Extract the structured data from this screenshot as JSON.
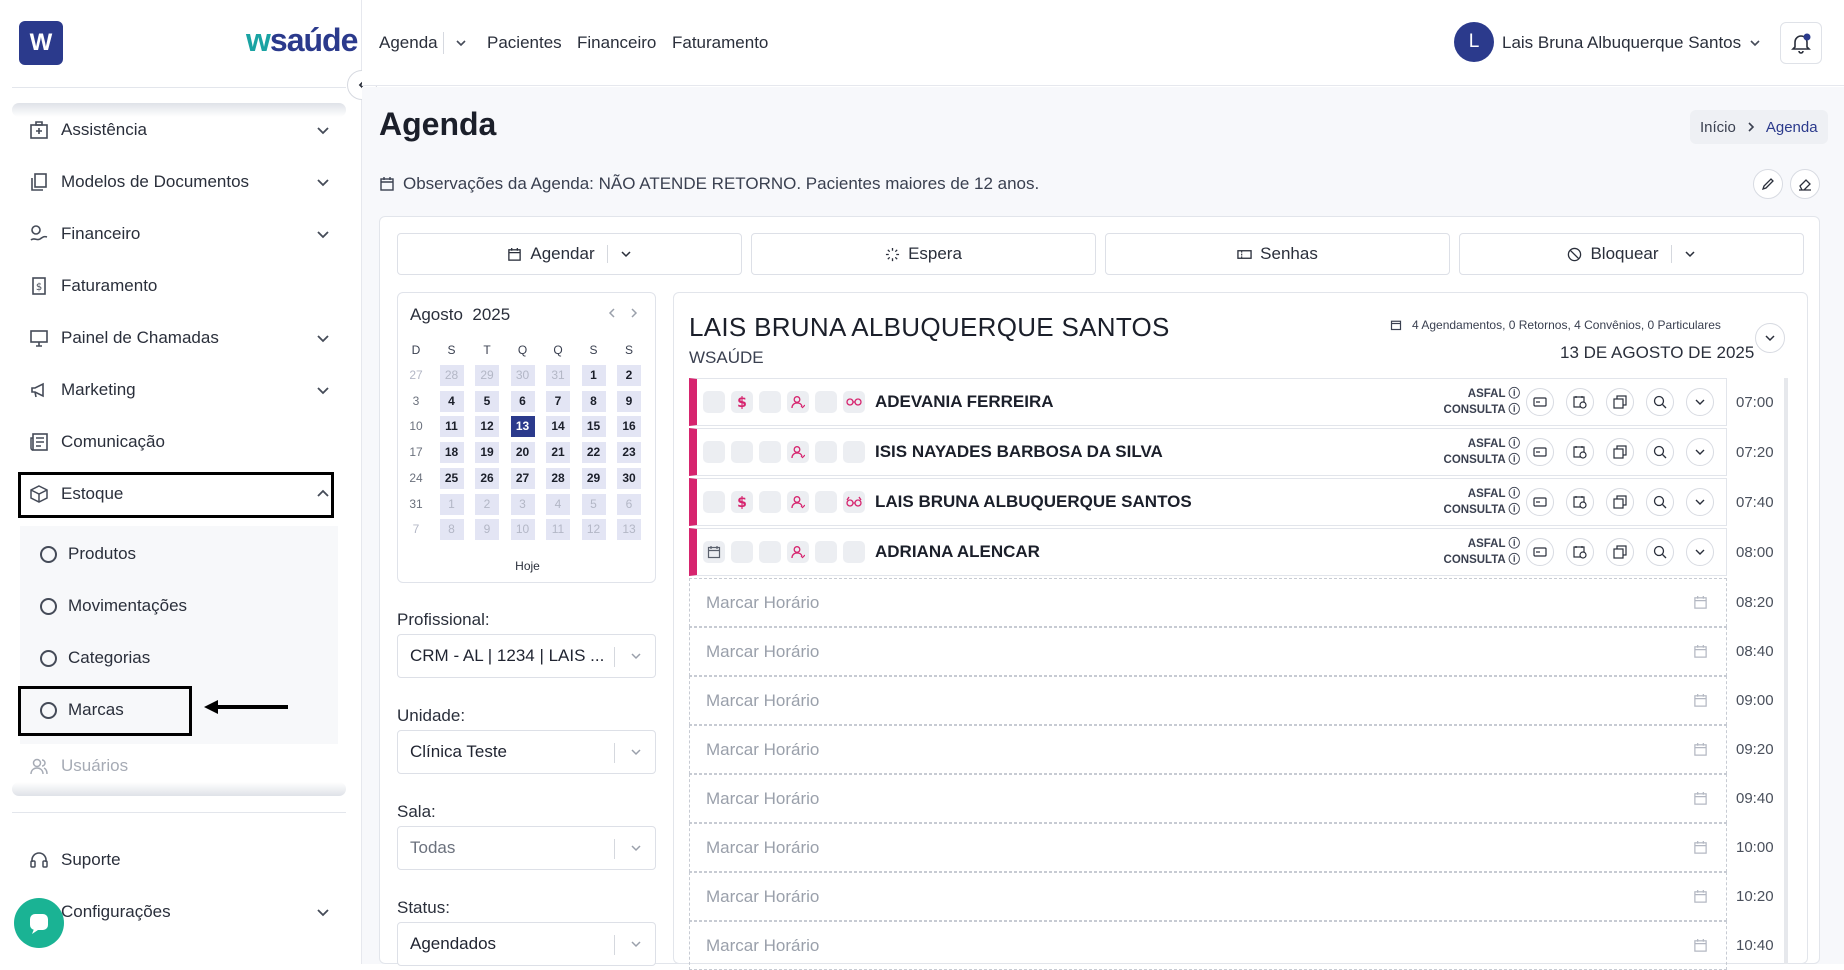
{
  "brand": {
    "logo_letter": "W",
    "name_prefix": "w",
    "name_suffix": "saúde"
  },
  "sidebar": {
    "items": [
      {
        "label": "Assistência",
        "icon": "hospital-icon"
      },
      {
        "label": "Modelos de Documentos",
        "icon": "documents-icon"
      },
      {
        "label": "Financeiro",
        "icon": "finance-icon"
      },
      {
        "label": "Faturamento",
        "icon": "invoice-icon"
      },
      {
        "label": "Painel de Chamadas",
        "icon": "monitor-icon"
      },
      {
        "label": "Marketing",
        "icon": "megaphone-icon"
      },
      {
        "label": "Comunicação",
        "icon": "newspaper-icon"
      },
      {
        "label": "Estoque",
        "icon": "box-icon"
      }
    ],
    "sub_items": [
      "Produtos",
      "Movimentações",
      "Categorias",
      "Marcas"
    ],
    "users": "Usuários",
    "support": "Suporte",
    "settings": "Configurações"
  },
  "nav": {
    "agenda": "Agenda",
    "pacientes": "Pacientes",
    "financeiro": "Financeiro",
    "faturamento": "Faturamento"
  },
  "user": {
    "initial": "L",
    "name": "Lais Bruna Albuquerque Santos"
  },
  "page": {
    "title": "Agenda",
    "breadcrumb_home": "Início",
    "breadcrumb_current": "Agenda",
    "observation": "Observações da Agenda: NÃO ATENDE RETORNO. Pacientes maiores de 12 anos."
  },
  "toolbar": {
    "agendar": "Agendar",
    "espera": "Espera",
    "senhas": "Senhas",
    "bloquear": "Bloquear"
  },
  "calendar": {
    "month": "Agosto",
    "year": "2025",
    "today": "Hoje",
    "weekdays": [
      "D",
      "S",
      "T",
      "Q",
      "Q",
      "S",
      "S"
    ],
    "weeks": [
      [
        "27",
        "28",
        "29",
        "30",
        "31",
        "1",
        "2"
      ],
      [
        "3",
        "4",
        "5",
        "6",
        "7",
        "8",
        "9"
      ],
      [
        "10",
        "11",
        "12",
        "13",
        "14",
        "15",
        "16"
      ],
      [
        "17",
        "18",
        "19",
        "20",
        "21",
        "22",
        "23"
      ],
      [
        "24",
        "25",
        "26",
        "27",
        "28",
        "29",
        "30"
      ],
      [
        "31",
        "1",
        "2",
        "3",
        "4",
        "5",
        "6"
      ],
      [
        "7",
        "8",
        "9",
        "10",
        "11",
        "12",
        "13"
      ]
    ],
    "selected": "13"
  },
  "filters": {
    "profissional_label": "Profissional:",
    "profissional_value": "CRM - AL | 1234 | LAIS ...",
    "unidade_label": "Unidade:",
    "unidade_value": "Clínica Teste",
    "sala_label": "Sala:",
    "sala_value": "Todas",
    "status_label": "Status:",
    "status_value": "Agendados"
  },
  "schedule": {
    "professional": "LAIS BRUNA ALBUQUERQUE SANTOS",
    "company": "WSAÚDE",
    "stats": [
      {
        "value": "4 Agendamentos",
        "color": "#3a4050"
      },
      {
        "value": "0 Retornos",
        "color": "#3a4050"
      },
      {
        "value": "4 Convênios",
        "color": "#3a4050"
      },
      {
        "value": "0 Particulares",
        "color": "#3a4050"
      }
    ],
    "date": "13 DE AGOSTO DE 2025",
    "appointments": [
      {
        "name": "ADEVANIA FERREIRA",
        "convenio": "ASFAL",
        "tipo": "CONSULTA",
        "time": "07:00"
      },
      {
        "name": "ISIS NAYADES BARBOSA DA SILVA",
        "convenio": "ASFAL",
        "tipo": "CONSULTA",
        "time": "07:20"
      },
      {
        "name": "LAIS BRUNA ALBUQUERQUE SANTOS",
        "convenio": "ASFAL",
        "tipo": "CONSULTA",
        "time": "07:40"
      },
      {
        "name": "ADRIANA ALENCAR",
        "convenio": "ASFAL",
        "tipo": "CONSULTA",
        "time": "08:00"
      }
    ],
    "empty_label": "Marcar Horário",
    "empty_times": [
      "08:20",
      "08:40",
      "09:00",
      "09:20",
      "09:40",
      "10:00",
      "10:20",
      "10:40"
    ]
  },
  "colors": {
    "brand": "#2b3a8c",
    "accent": "#d6246e",
    "teal": "#1aa3a3",
    "chat": "#1ab394"
  }
}
